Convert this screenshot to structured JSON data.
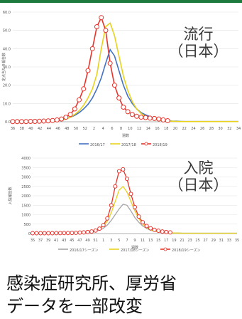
{
  "header_color": "#1c7a3e",
  "caption": {
    "line1": "感染症研究所、厚労省",
    "line2": "データを一部改変"
  },
  "chart_data": [
    {
      "type": "line",
      "overlay_label": [
        "流行",
        "（日本）"
      ],
      "ylabel": "定点当たり報告数",
      "xlabel": "週数",
      "ylim": [
        0,
        60
      ],
      "yticks": [
        "0.0",
        "10.0",
        "20.0",
        "30.0",
        "40.0",
        "50.0",
        "60.0"
      ],
      "xticks": [
        "36",
        "38",
        "40",
        "42",
        "44",
        "46",
        "48",
        "50",
        "52",
        "2",
        "4",
        "6",
        "8",
        "10",
        "12",
        "14",
        "16",
        "18",
        "20",
        "22",
        "24",
        "26",
        "28",
        "30",
        "32",
        "34"
      ],
      "grid": true,
      "legend": "bottom",
      "series": [
        {
          "name": "2016/17",
          "color": "#4472c4",
          "marker": "none",
          "values": [
            0.1,
            0.1,
            0.1,
            0.1,
            0.1,
            0.2,
            0.2,
            0.2,
            0.3,
            0.4,
            0.6,
            0.9,
            1.5,
            2.5,
            3.5,
            5.0,
            7.0,
            9.5,
            13.0,
            18.0,
            24.0,
            32.0,
            39.5,
            36.0,
            28.0,
            20.0,
            14.0,
            10.0,
            7.0,
            5.0,
            3.8,
            2.8,
            2.0,
            1.3,
            0.9,
            0.6,
            0.4,
            0.3,
            0.2,
            0.1,
            0.1,
            0.1,
            0.1,
            0.1,
            0.1,
            0.1,
            0.1,
            0.1,
            0.1,
            0.1,
            0.1,
            0.1
          ]
        },
        {
          "name": "2017/18",
          "color": "#e8d21e",
          "marker": "none",
          "values": [
            0.1,
            0.1,
            0.1,
            0.1,
            0.1,
            0.2,
            0.2,
            0.3,
            0.4,
            0.5,
            0.7,
            1.0,
            1.5,
            2.5,
            4.0,
            6.0,
            9.0,
            13.0,
            18.0,
            26.0,
            40.0,
            52.0,
            54.0,
            47.0,
            36.0,
            25.0,
            17.0,
            11.0,
            7.0,
            4.5,
            3.0,
            2.0,
            1.3,
            0.9,
            0.6,
            0.4,
            0.3,
            0.2,
            0.1,
            0.1,
            0.1,
            0.1,
            0.1,
            0.1,
            0.1,
            0.1,
            0.1,
            0.1,
            0.1,
            0.1,
            0.1,
            0.1
          ]
        },
        {
          "name": "2018/19",
          "color": "#e8322a",
          "marker": "circle",
          "values": [
            0.1,
            0.1,
            0.1,
            0.1,
            0.2,
            0.2,
            0.3,
            0.4,
            0.5,
            0.7,
            1.0,
            1.5,
            2.5,
            4.0,
            7.0,
            12.0,
            18.0,
            28.0,
            40.0,
            52.0,
            57.0,
            50.0,
            32.0,
            20.0,
            13.0,
            8.0,
            5.5,
            4.0,
            3.0,
            2.5,
            2.3,
            2.0,
            1.8,
            1.5,
            1.0,
            0.6
          ]
        }
      ]
    },
    {
      "type": "line",
      "overlay_label": [
        "入院",
        "（日本）"
      ],
      "ylabel": "入院報告数",
      "xlabel": "週数",
      "ylim": [
        0,
        4000
      ],
      "yticks": [
        "0",
        "500",
        "1000",
        "1500",
        "2000",
        "2500",
        "3000",
        "3500",
        "4000"
      ],
      "xticks": [
        "35",
        "37",
        "39",
        "41",
        "43",
        "45",
        "47",
        "49",
        "51",
        "1",
        "3",
        "5",
        "7",
        "9",
        "11",
        "13",
        "15",
        "17",
        "19",
        "21",
        "23",
        "25",
        "27",
        "29",
        "31",
        "33",
        "35"
      ],
      "grid": true,
      "legend": "bottom",
      "series": [
        {
          "name": "2016/17シーズン",
          "color": "#a6a6a6",
          "marker": "none",
          "values": [
            20,
            20,
            20,
            20,
            20,
            20,
            20,
            25,
            25,
            30,
            30,
            35,
            40,
            50,
            60,
            80,
            120,
            180,
            280,
            450,
            700,
            1000,
            1300,
            1550,
            1500,
            1200,
            850,
            600,
            400,
            270,
            180,
            120,
            80,
            60,
            45,
            35,
            30,
            25,
            20,
            20,
            20,
            20,
            20,
            20,
            20,
            20,
            20,
            20,
            20,
            20,
            20,
            20,
            20
          ]
        },
        {
          "name": "2017/18シーズン",
          "color": "#e8d21e",
          "marker": "none",
          "values": [
            20,
            20,
            20,
            20,
            20,
            20,
            25,
            25,
            30,
            30,
            35,
            40,
            50,
            60,
            80,
            110,
            160,
            250,
            400,
            650,
            1100,
            1700,
            2300,
            2500,
            2200,
            1700,
            1200,
            800,
            500,
            320,
            200,
            130,
            90,
            60,
            45,
            35,
            30,
            25,
            20,
            20,
            20,
            20,
            20,
            20,
            20,
            20,
            20,
            20,
            20,
            20,
            20,
            20,
            20
          ]
        },
        {
          "name": "2018/19シーズン",
          "color": "#e8322a",
          "marker": "circle",
          "values": [
            20,
            20,
            20,
            20,
            20,
            20,
            25,
            25,
            30,
            30,
            35,
            40,
            50,
            60,
            80,
            110,
            160,
            260,
            450,
            800,
            1500,
            2500,
            3300,
            3400,
            2900,
            2100,
            1400,
            900,
            600,
            400,
            280,
            200,
            150,
            110,
            80,
            60
          ]
        }
      ]
    }
  ]
}
